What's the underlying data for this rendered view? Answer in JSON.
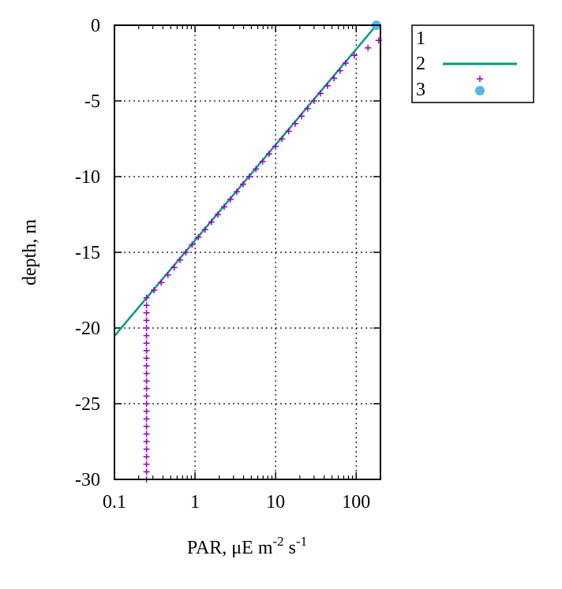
{
  "chart_data": {
    "type": "scatter",
    "xscale": "log",
    "xlim": [
      0.1,
      200
    ],
    "ylim": [
      -30,
      0
    ],
    "xticks": [
      "0.1",
      "1",
      "10",
      "100"
    ],
    "xtick_values": [
      0.1,
      1,
      10,
      100
    ],
    "yticks": [
      "0",
      "-5",
      "-10",
      "-15",
      "-20",
      "-25",
      "-30"
    ],
    "ytick_values": [
      0,
      -5,
      -10,
      -15,
      -20,
      -25,
      -30
    ],
    "ylabel": "depth, m",
    "xlabel": {
      "base": "PAR, μE m",
      "exp1": "-2",
      "mid": " s",
      "exp2": "-1"
    },
    "grid": true,
    "legend_position": "outside-top-right",
    "colors": {
      "series1": "#9400d3",
      "series2": "#009e73",
      "series3": "#56b4e9"
    },
    "series": [
      {
        "name": "1",
        "marker": "plus",
        "depth": [
          -1,
          -1.5,
          -2,
          -2.5,
          -3,
          -3.5,
          -4,
          -4.5,
          -5,
          -5.5,
          -6,
          -6.5,
          -7,
          -7.5,
          -8,
          -8.5,
          -9,
          -9.5,
          -10,
          -10.5,
          -11,
          -11.5,
          -12,
          -12.5,
          -13,
          -13.5,
          -14,
          -14.5,
          -15,
          -15.5,
          -16,
          -16.5,
          -17,
          -17.5,
          -18,
          -18.5,
          -19,
          -19.5,
          -20,
          -20.5,
          -21,
          -21.5,
          -22,
          -22.5,
          -23,
          -23.5,
          -24,
          -24.5,
          -25,
          -25.5,
          -26,
          -26.5,
          -27,
          -27.5,
          -28,
          -28.5,
          -29,
          -29.5,
          -30
        ],
        "par": [
          190,
          140,
          95,
          74,
          63,
          53,
          44,
          36,
          30,
          25,
          21,
          17.5,
          14.5,
          12,
          10,
          8.3,
          6.9,
          5.7,
          4.7,
          3.95,
          3.3,
          2.75,
          2.3,
          1.92,
          1.6,
          1.33,
          1.1,
          0.92,
          0.77,
          0.65,
          0.55,
          0.46,
          0.38,
          0.31,
          0.25,
          0.25,
          0.25,
          0.25,
          0.25,
          0.25,
          0.25,
          0.25,
          0.25,
          0.25,
          0.25,
          0.25,
          0.25,
          0.25,
          0.25,
          0.25,
          0.25,
          0.25,
          0.25,
          0.25,
          0.25,
          0.25,
          0.25,
          0.25,
          0.25
        ]
      },
      {
        "name": "2",
        "style": "line",
        "depth": [
          0,
          -20.53
        ],
        "par": [
          178,
          0.1
        ]
      },
      {
        "name": "3",
        "marker": "circle",
        "depth": [
          0
        ],
        "par": [
          178
        ]
      }
    ]
  }
}
